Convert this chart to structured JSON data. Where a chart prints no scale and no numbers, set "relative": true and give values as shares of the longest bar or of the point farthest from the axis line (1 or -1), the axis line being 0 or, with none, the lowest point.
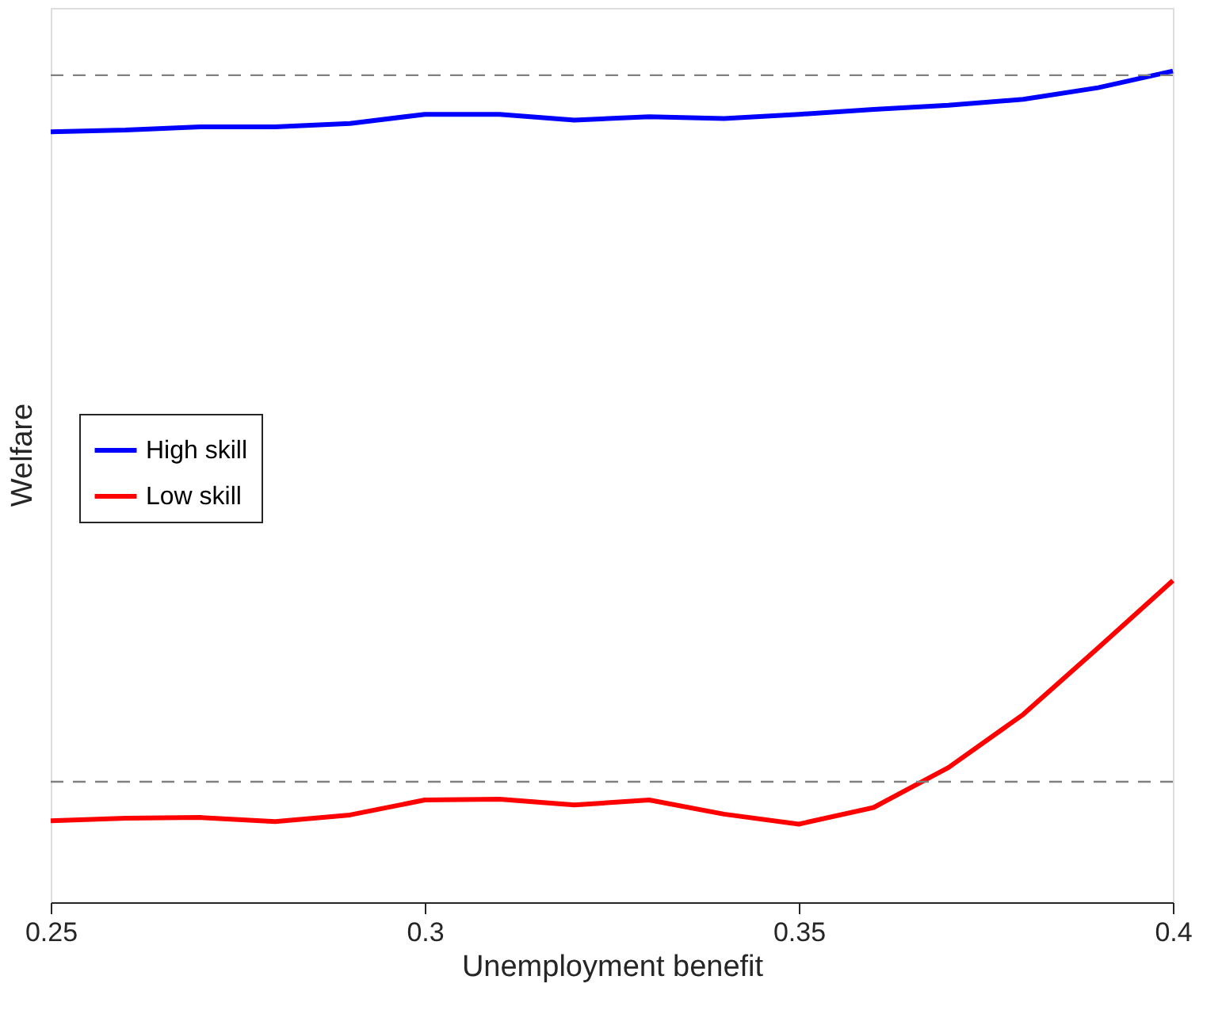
{
  "chart_data": {
    "type": "line",
    "xlabel": "Unemployment benefit",
    "ylabel": "Welfare",
    "relative": true,
    "x": [
      0.25,
      0.26,
      0.27,
      0.28,
      0.29,
      0.3,
      0.31,
      0.32,
      0.33,
      0.34,
      0.35,
      0.36,
      0.37,
      0.38,
      0.39,
      0.4
    ],
    "xlim": [
      0.25,
      0.4
    ],
    "xticks": [
      0.25,
      0.3,
      0.35,
      0.4
    ],
    "series": [
      {
        "name": "High skill",
        "color": "#0000ff",
        "values": [
          0.927,
          0.929,
          0.933,
          0.933,
          0.937,
          0.948,
          0.948,
          0.941,
          0.945,
          0.943,
          0.948,
          0.954,
          0.959,
          0.966,
          0.98,
          1
        ]
      },
      {
        "name": "Low skill",
        "color": "#ff0000",
        "values": [
          0.098,
          0.101,
          0.102,
          0.097,
          0.105,
          0.123,
          0.124,
          0.117,
          0.123,
          0.106,
          0.094,
          0.114,
          0.162,
          0.226,
          0.306,
          0.387
        ]
      }
    ],
    "ref_lines": [
      {
        "axis": "y",
        "value": 0.995,
        "color": "#808080",
        "line_style": "dashed"
      },
      {
        "axis": "y",
        "value": 0.145,
        "color": "#808080",
        "line_style": "dashed"
      }
    ],
    "legend": "left",
    "grid": false,
    "marker": "none",
    "line_style": "solid"
  }
}
